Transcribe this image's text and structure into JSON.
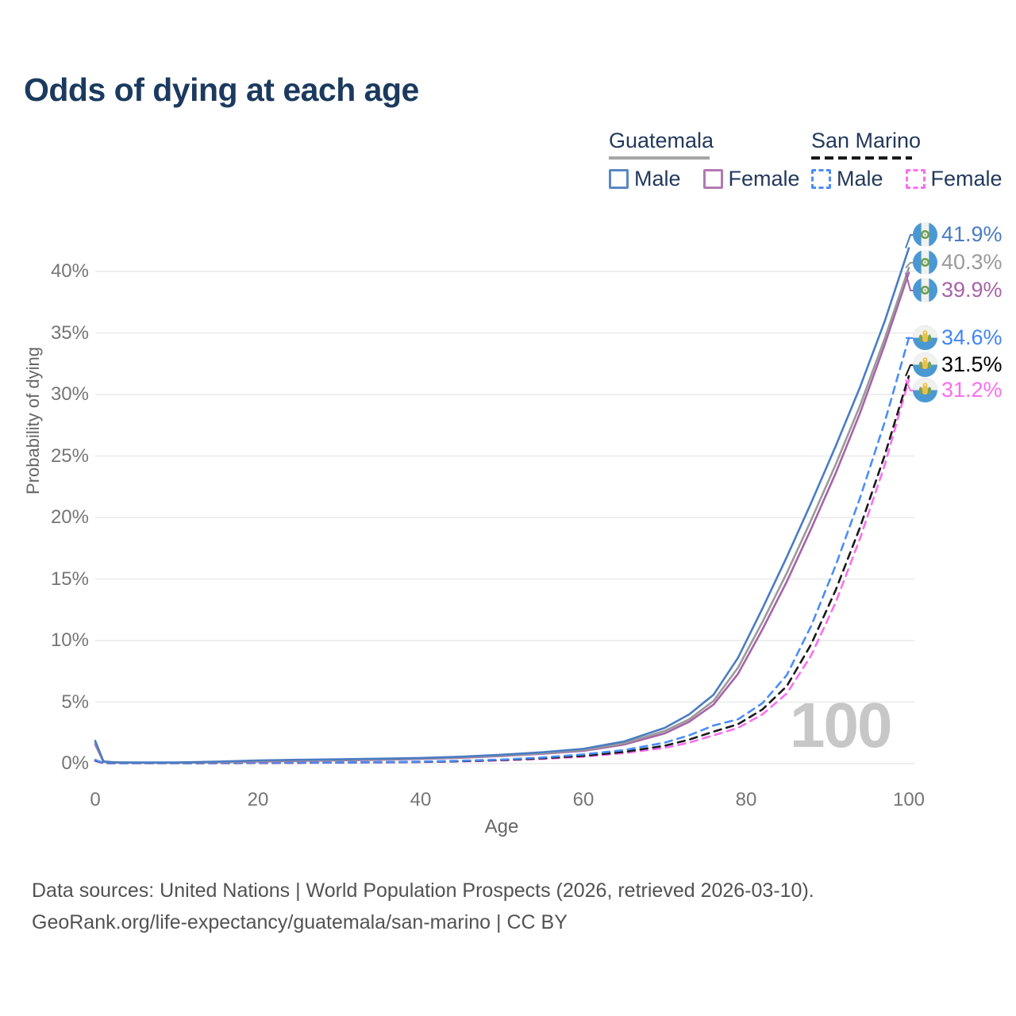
{
  "title": "Odds of dying at each age",
  "legend": {
    "groups": [
      {
        "name": "Guatemala",
        "line_style": "solid",
        "rule_color": "#a6a6a6",
        "items": [
          {
            "label": "Male",
            "color": "#5b87c5",
            "dashed": false
          },
          {
            "label": "Female",
            "color": "#b279b2",
            "dashed": false
          }
        ]
      },
      {
        "name": "San Marino",
        "line_style": "dashed",
        "rule_color": "#1a1a1a",
        "items": [
          {
            "label": "Male",
            "color": "#4b8df8",
            "dashed": true
          },
          {
            "label": "Female",
            "color": "#fb6ef1",
            "dashed": true
          }
        ]
      }
    ]
  },
  "axes": {
    "y": {
      "title": "Probability of dying",
      "tick_labels": [
        "0%",
        "5%",
        "10%",
        "15%",
        "20%",
        "25%",
        "30%",
        "35%",
        "40%"
      ],
      "tick_values": [
        0,
        5,
        10,
        15,
        20,
        25,
        30,
        35,
        40
      ]
    },
    "x": {
      "title": "Age",
      "tick_labels": [
        "0",
        "20",
        "40",
        "60",
        "80",
        "100"
      ],
      "tick_values": [
        0,
        20,
        40,
        60,
        80,
        100
      ]
    }
  },
  "watermark": "100",
  "end_labels": [
    {
      "value": "41.9%",
      "color": "#4a7cc2",
      "flag": "guatemala"
    },
    {
      "value": "40.3%",
      "color": "#9a9a9a",
      "flag": "guatemala"
    },
    {
      "value": "39.9%",
      "color": "#a763a8",
      "flag": "guatemala"
    },
    {
      "value": "34.6%",
      "color": "#4285f4",
      "flag": "san-marino"
    },
    {
      "value": "31.5%",
      "color": "#000000",
      "flag": "san-marino"
    },
    {
      "value": "31.2%",
      "color": "#fb6ef1",
      "flag": "san-marino"
    }
  ],
  "footer": {
    "line1": "Data sources: United Nations | World Population Prospects (2026, retrieved 2026-03-10).",
    "line2": "GeoRank.org/life-expectancy/guatemala/san-marino | CC BY"
  },
  "chart_data": {
    "type": "line",
    "title": "Odds of dying at each age",
    "xlabel": "Age",
    "ylabel": "Probability of dying",
    "x_range": [
      0,
      100
    ],
    "y_range_percent": [
      0,
      43
    ],
    "grid": "horizontal only",
    "legend_position": "top-right",
    "ages": [
      0,
      1,
      2,
      3,
      5,
      10,
      15,
      20,
      25,
      30,
      35,
      40,
      45,
      50,
      55,
      60,
      65,
      70,
      73,
      76,
      79,
      82,
      85,
      88,
      91,
      94,
      97,
      100
    ],
    "series": [
      {
        "name": "Guatemala Male",
        "color": "#4a7cc2",
        "dash": "solid",
        "end_label": "41.9%",
        "values_percent": [
          1.85,
          0.18,
          0.12,
          0.1,
          0.09,
          0.09,
          0.16,
          0.26,
          0.31,
          0.35,
          0.4,
          0.46,
          0.56,
          0.72,
          0.92,
          1.2,
          1.8,
          2.9,
          4.0,
          5.6,
          8.6,
          12.6,
          16.8,
          21.2,
          25.8,
          30.6,
          35.9,
          41.9
        ]
      },
      {
        "name": "Guatemala Both Sexes",
        "color": "#9a9a9a",
        "dash": "solid",
        "end_label": "40.3%",
        "values_percent": [
          1.7,
          0.16,
          0.11,
          0.09,
          0.08,
          0.08,
          0.13,
          0.21,
          0.26,
          0.3,
          0.35,
          0.42,
          0.51,
          0.66,
          0.85,
          1.1,
          1.65,
          2.65,
          3.6,
          5.1,
          7.8,
          11.5,
          15.5,
          19.8,
          24.3,
          29.1,
          34.5,
          40.3
        ]
      },
      {
        "name": "Guatemala Female",
        "color": "#a763a8",
        "dash": "solid",
        "end_label": "39.9%",
        "values_percent": [
          1.55,
          0.14,
          0.1,
          0.08,
          0.07,
          0.07,
          0.11,
          0.17,
          0.21,
          0.26,
          0.31,
          0.38,
          0.47,
          0.61,
          0.8,
          1.03,
          1.55,
          2.45,
          3.4,
          4.8,
          7.3,
          10.9,
          14.8,
          19.1,
          23.6,
          28.5,
          34.0,
          39.9
        ]
      },
      {
        "name": "San Marino Male",
        "color": "#4b8df8",
        "dash": "dashed",
        "end_label": "34.6%",
        "values_percent": [
          0.3,
          0.05,
          0.03,
          0.02,
          0.02,
          0.02,
          0.05,
          0.08,
          0.09,
          0.1,
          0.12,
          0.16,
          0.23,
          0.33,
          0.5,
          0.75,
          1.1,
          1.7,
          2.3,
          3.1,
          3.6,
          4.9,
          7.2,
          11.2,
          16.1,
          21.6,
          27.7,
          34.6
        ]
      },
      {
        "name": "San Marino Both Sexes",
        "color": "#1a1a1a",
        "dash": "dashed",
        "end_label": "31.5%",
        "values_percent": [
          0.26,
          0.04,
          0.03,
          0.02,
          0.02,
          0.02,
          0.04,
          0.06,
          0.07,
          0.09,
          0.11,
          0.14,
          0.2,
          0.29,
          0.43,
          0.63,
          0.95,
          1.45,
          1.95,
          2.6,
          3.2,
          4.4,
          6.3,
          9.7,
          14.1,
          19.2,
          25.0,
          31.5
        ]
      },
      {
        "name": "San Marino Female",
        "color": "#fb6ef1",
        "dash": "dashed",
        "end_label": "31.2%",
        "values_percent": [
          0.22,
          0.04,
          0.02,
          0.02,
          0.02,
          0.02,
          0.03,
          0.05,
          0.06,
          0.08,
          0.1,
          0.13,
          0.18,
          0.26,
          0.38,
          0.56,
          0.85,
          1.28,
          1.7,
          2.3,
          2.9,
          4.0,
          5.7,
          8.8,
          13.1,
          18.3,
          24.2,
          31.2
        ]
      }
    ]
  }
}
